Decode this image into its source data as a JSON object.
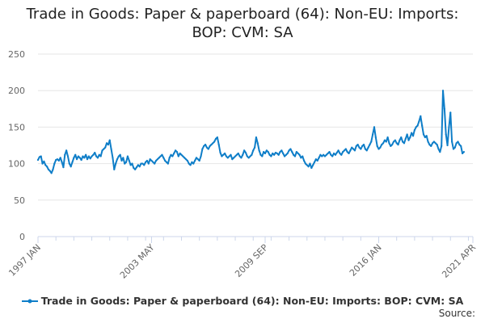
{
  "chart_data": {
    "type": "line",
    "title_lines": [
      "Trade in Goods: Paper & paperboard (64): Non-EU: Imports:",
      "BOP: CVM: SA"
    ],
    "x_tick_labels": [
      "1997 JAN",
      "2003 MAY",
      "2009 SEP",
      "2016 JAN",
      "2021 APR"
    ],
    "x_tick_positions": [
      0,
      76,
      152,
      228,
      291
    ],
    "xlim": [
      0,
      291
    ],
    "ylim": [
      0,
      250
    ],
    "y_ticks": [
      0,
      50,
      100,
      150,
      200,
      250
    ],
    "grid": true,
    "legend_position": "bottom",
    "series": [
      {
        "name": "Trade in Goods: Paper & paperboard (64): Non-EU: Imports: BOP: CVM: SA",
        "color": "#0f7ec8",
        "values": [
          105,
          109,
          110,
          100,
          103,
          98,
          96,
          92,
          90,
          87,
          92,
          100,
          105,
          106,
          104,
          108,
          102,
          95,
          112,
          118,
          110,
          100,
          96,
          102,
          108,
          112,
          106,
          110,
          108,
          105,
          110,
          108,
          112,
          106,
          110,
          107,
          110,
          112,
          115,
          110,
          108,
          112,
          110,
          118,
          120,
          122,
          128,
          126,
          132,
          120,
          108,
          92,
          100,
          106,
          110,
          112,
          104,
          108,
          100,
          102,
          110,
          104,
          98,
          100,
          94,
          92,
          95,
          98,
          96,
          100,
          100,
          98,
          102,
          104,
          100,
          106,
          104,
          102,
          100,
          104,
          106,
          108,
          110,
          112,
          108,
          104,
          102,
          100,
          108,
          112,
          110,
          114,
          118,
          116,
          110,
          114,
          112,
          110,
          108,
          106,
          104,
          100,
          98,
          102,
          100,
          104,
          108,
          106,
          104,
          110,
          120,
          124,
          126,
          122,
          120,
          124,
          126,
          128,
          130,
          134,
          136,
          126,
          115,
          110,
          112,
          114,
          110,
          108,
          110,
          112,
          106,
          108,
          110,
          112,
          114,
          110,
          108,
          112,
          118,
          115,
          110,
          108,
          110,
          112,
          118,
          122,
          136,
          128,
          118,
          112,
          110,
          116,
          114,
          118,
          116,
          112,
          110,
          114,
          112,
          115,
          114,
          112,
          116,
          118,
          114,
          110,
          112,
          114,
          118,
          120,
          116,
          112,
          110,
          116,
          114,
          112,
          108,
          110,
          104,
          100,
          98,
          96,
          100,
          94,
          98,
          102,
          106,
          104,
          108,
          112,
          110,
          112,
          110,
          112,
          114,
          116,
          112,
          110,
          114,
          112,
          115,
          118,
          114,
          112,
          116,
          118,
          120,
          116,
          114,
          118,
          122,
          120,
          118,
          124,
          126,
          122,
          120,
          124,
          126,
          120,
          118,
          122,
          126,
          130,
          140,
          150,
          136,
          124,
          120,
          122,
          126,
          128,
          132,
          130,
          136,
          128,
          124,
          126,
          130,
          132,
          128,
          126,
          132,
          136,
          130,
          128,
          134,
          140,
          132,
          136,
          142,
          138,
          146,
          150,
          152,
          158,
          165,
          152,
          140,
          136,
          138,
          130,
          126,
          124,
          128,
          130,
          128,
          126,
          120,
          116,
          124,
          200,
          175,
          140,
          125,
          150,
          170,
          130,
          120,
          122,
          128,
          130,
          126,
          124,
          114,
          116
        ]
      }
    ]
  },
  "source_label": "Source:"
}
